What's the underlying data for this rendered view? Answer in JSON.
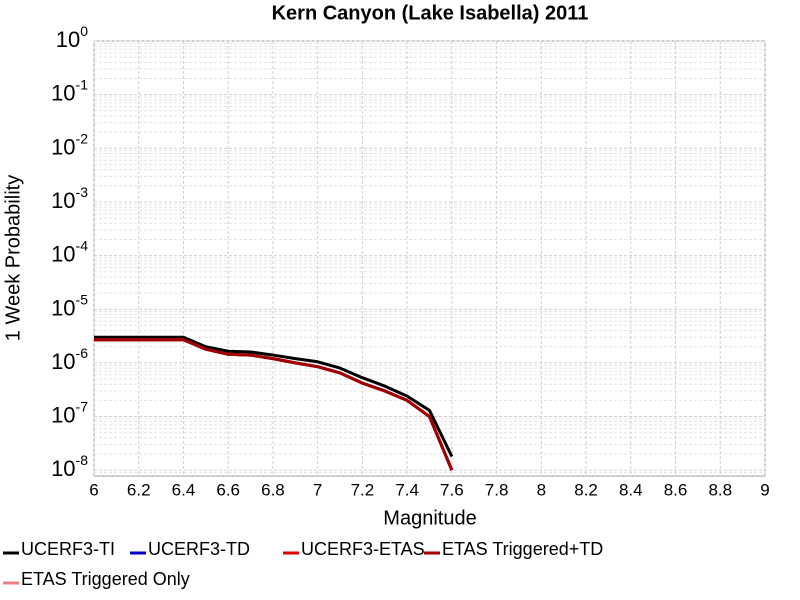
{
  "chart_data": {
    "type": "line",
    "title": "Kern Canyon (Lake Isabella) 2011",
    "x_label": "Magnitude",
    "y_label": "1 Week Probability",
    "log_y": true,
    "grid": true,
    "legend": "bottom",
    "x": [
      6.0,
      6.1,
      6.2,
      6.3,
      6.4,
      6.5,
      6.6,
      6.7,
      6.8,
      6.9,
      7.0,
      7.1,
      7.2,
      7.3,
      7.4,
      7.5,
      7.6
    ],
    "xlim": [
      6,
      9
    ],
    "xticks": [
      6,
      6.2,
      6.4,
      6.6,
      6.8,
      7,
      7.2,
      7.4,
      7.6,
      7.8,
      8,
      8.2,
      8.4,
      8.6,
      8.8,
      9
    ],
    "ylim": [
      7.8e-09,
      1
    ],
    "yticks": [
      {
        "value": 1,
        "label": "10",
        "exponent": "0"
      },
      {
        "value": 0.1,
        "label": "10",
        "exponent": "-1"
      },
      {
        "value": 0.01,
        "label": "10",
        "exponent": "-2"
      },
      {
        "value": 0.001,
        "label": "10",
        "exponent": "-3"
      },
      {
        "value": 0.0001,
        "label": "10",
        "exponent": "-4"
      },
      {
        "value": 1e-05,
        "label": "10",
        "exponent": "-5"
      },
      {
        "value": 1e-06,
        "label": "10",
        "exponent": "-6"
      },
      {
        "value": 1e-07,
        "label": "10",
        "exponent": "-7"
      },
      {
        "value": 1e-08,
        "label": "10",
        "exponent": "-8"
      }
    ],
    "series": [
      {
        "name": "UCERF3-TI",
        "color": "#000000",
        "values": [
          3e-06,
          3e-06,
          3e-06,
          3e-06,
          3e-06,
          2e-06,
          1.65e-06,
          1.6e-06,
          1.4e-06,
          1.2e-06,
          1.05e-06,
          8e-07,
          5.3e-07,
          3.7e-07,
          2.4e-07,
          1.3e-07,
          1.8e-08
        ]
      },
      {
        "name": "UCERF3-TD",
        "color": "#0000cc",
        "values": [
          2.7e-06,
          2.7e-06,
          2.7e-06,
          2.7e-06,
          2.7e-06,
          1.8e-06,
          1.45e-06,
          1.4e-06,
          1.2e-06,
          1e-06,
          8.5e-07,
          6.5e-07,
          4.2e-07,
          3e-07,
          2e-07,
          1e-07,
          1e-08
        ]
      },
      {
        "name": "UCERF3-ETAS",
        "color": "#e00000",
        "values": [
          2.7e-06,
          2.7e-06,
          2.7e-06,
          2.7e-06,
          2.7e-06,
          1.8e-06,
          1.45e-06,
          1.4e-06,
          1.2e-06,
          1e-06,
          8.5e-07,
          6.5e-07,
          4.2e-07,
          3e-07,
          2e-07,
          1e-07,
          1e-08
        ]
      },
      {
        "name": "ETAS Triggered+TD",
        "color": "#a00000",
        "values": [
          2.7e-06,
          2.7e-06,
          2.7e-06,
          2.7e-06,
          2.7e-06,
          1.8e-06,
          1.45e-06,
          1.4e-06,
          1.2e-06,
          1e-06,
          8.5e-07,
          6.5e-07,
          4.2e-07,
          3e-07,
          2e-07,
          1e-07,
          1e-08
        ]
      },
      {
        "name": "ETAS Triggered Only",
        "color": "#f08080",
        "values": [
          null,
          null,
          null,
          null,
          null,
          null,
          null,
          null,
          null,
          null,
          null,
          null,
          null,
          null,
          null,
          null,
          null
        ]
      }
    ]
  }
}
